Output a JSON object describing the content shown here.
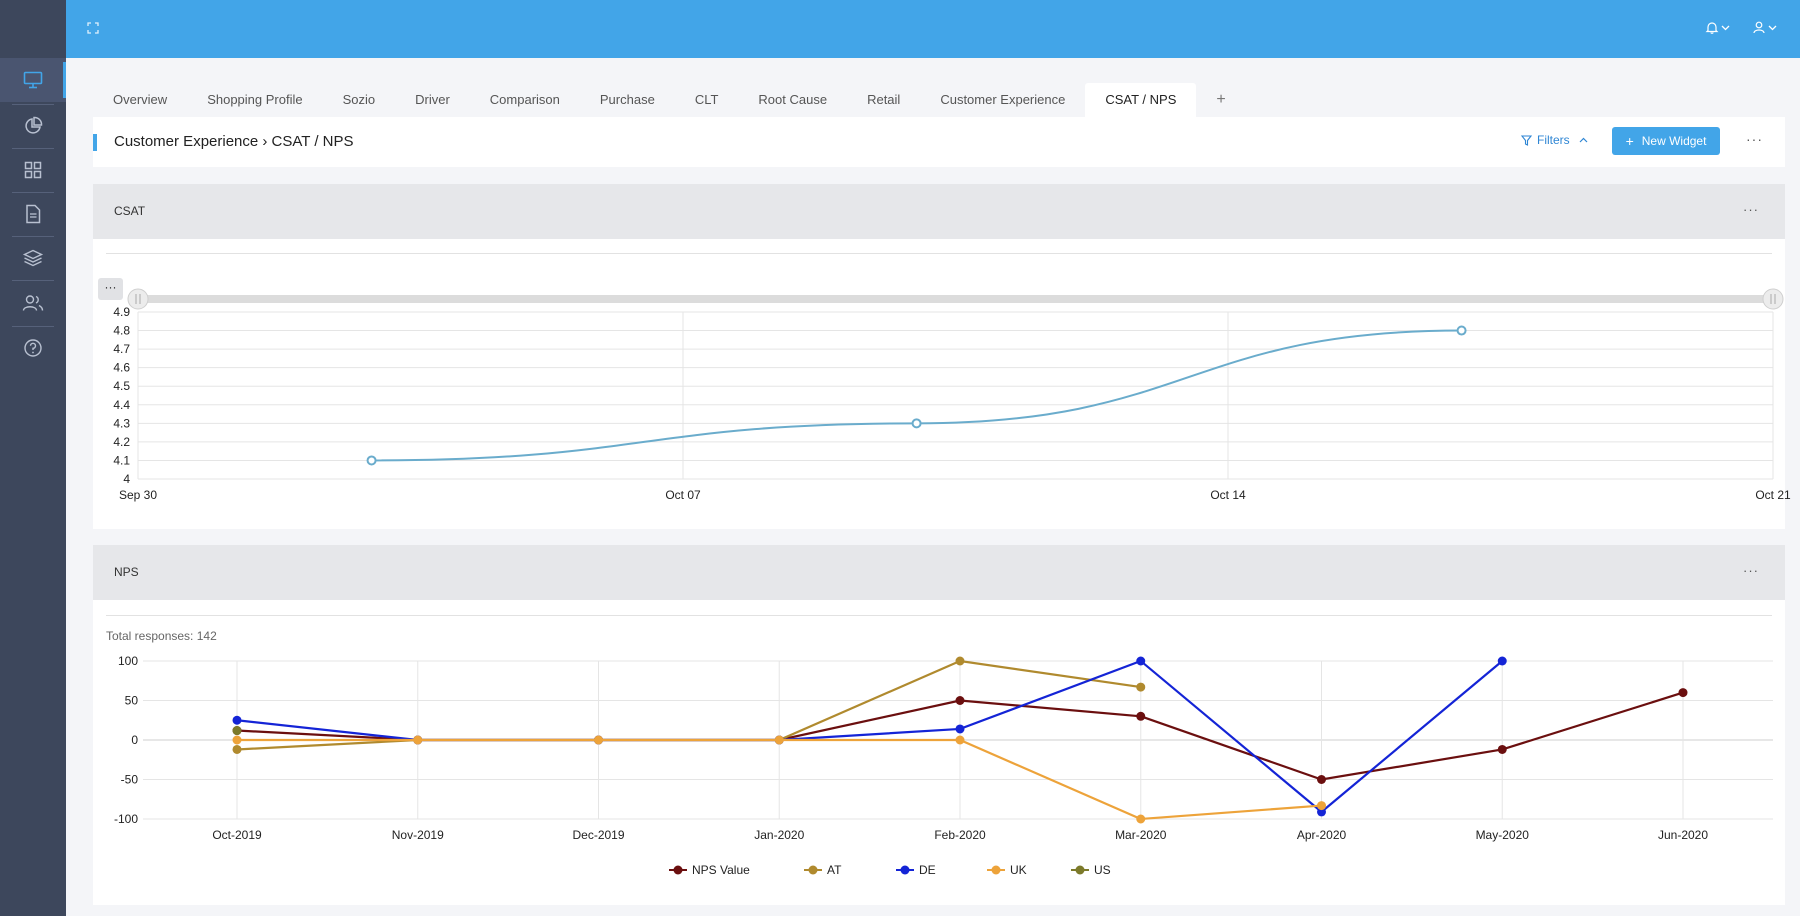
{
  "sidebar": {
    "items": [
      {
        "icon": "monitor-icon",
        "active": true
      },
      {
        "icon": "pie-chart-icon",
        "active": false
      },
      {
        "icon": "grid-icon",
        "active": false
      },
      {
        "icon": "document-icon",
        "active": false
      },
      {
        "icon": "layers-icon",
        "active": false
      },
      {
        "icon": "users-icon",
        "active": false
      },
      {
        "icon": "help-icon",
        "active": false
      }
    ]
  },
  "topbar": {
    "expand_icon": "expand-icon",
    "bell_icon": "bell-icon",
    "user_icon": "user-icon"
  },
  "tabs": [
    {
      "label": "Overview",
      "active": false
    },
    {
      "label": "Shopping Profile",
      "active": false
    },
    {
      "label": "Sozio",
      "active": false
    },
    {
      "label": "Driver",
      "active": false
    },
    {
      "label": "Comparison",
      "active": false
    },
    {
      "label": "Purchase",
      "active": false
    },
    {
      "label": "CLT",
      "active": false
    },
    {
      "label": "Root Cause",
      "active": false
    },
    {
      "label": "Retail",
      "active": false
    },
    {
      "label": "Customer Experience",
      "active": false
    },
    {
      "label": "CSAT / NPS",
      "active": true
    }
  ],
  "add_tab_label": "+",
  "header": {
    "breadcrumb": "Customer Experience › CSAT / NPS",
    "filters_label": "Filters",
    "new_widget_label": "New Widget",
    "more_label": "···"
  },
  "csat_panel": {
    "title": "CSAT",
    "more_label": "···",
    "range_more_label": "···"
  },
  "nps_panel": {
    "title": "NPS",
    "more_label": "···",
    "total_responses": "Total responses: 142"
  },
  "colors": {
    "accent": "#42a5e8",
    "sidebar": "#3d475c",
    "csat_line": "#6aaccc",
    "nps_value": "#6b0f0f",
    "at": "#b08a2e",
    "de": "#1424d6",
    "uk": "#eda33a",
    "us": "#7c7a2a"
  },
  "chart_data": [
    {
      "type": "line",
      "title": "CSAT",
      "x_ticks": [
        "Sep 30",
        "Oct 07",
        "Oct 14",
        "Oct 21"
      ],
      "y_ticks": [
        "4",
        "4.1",
        "4.2",
        "4.3",
        "4.4",
        "4.5",
        "4.6",
        "4.7",
        "4.8",
        "4.9"
      ],
      "ylim": [
        4,
        4.9
      ],
      "series": [
        {
          "x": [
            "2019-10-03",
            "2019-10-10",
            "2019-10-17"
          ],
          "values": [
            4.1,
            4.3,
            4.8
          ]
        }
      ],
      "grid": true
    },
    {
      "type": "line",
      "title": "NPS",
      "categories": [
        "Oct-2019",
        "Nov-2019",
        "Dec-2019",
        "Jan-2020",
        "Feb-2020",
        "Mar-2020",
        "Apr-2020",
        "May-2020",
        "Jun-2020"
      ],
      "y_ticks": [
        "100",
        "50",
        "0",
        "-50",
        "-100"
      ],
      "ylim": [
        -100,
        100
      ],
      "legend_position": "bottom",
      "series": [
        {
          "name": "NPS Value",
          "values": [
            12,
            0,
            0,
            0,
            50,
            30,
            -50,
            -12,
            60
          ]
        },
        {
          "name": "AT",
          "values": [
            -12,
            0,
            0,
            0,
            100,
            67,
            null,
            null,
            null
          ]
        },
        {
          "name": "DE",
          "values": [
            25,
            0,
            0,
            0,
            14,
            100,
            -91,
            100,
            null
          ]
        },
        {
          "name": "UK",
          "values": [
            0,
            0,
            0,
            0,
            0,
            -100,
            -83,
            null,
            null
          ]
        },
        {
          "name": "US",
          "values": [
            12,
            null,
            null,
            null,
            null,
            null,
            null,
            null,
            null
          ]
        }
      ]
    }
  ]
}
